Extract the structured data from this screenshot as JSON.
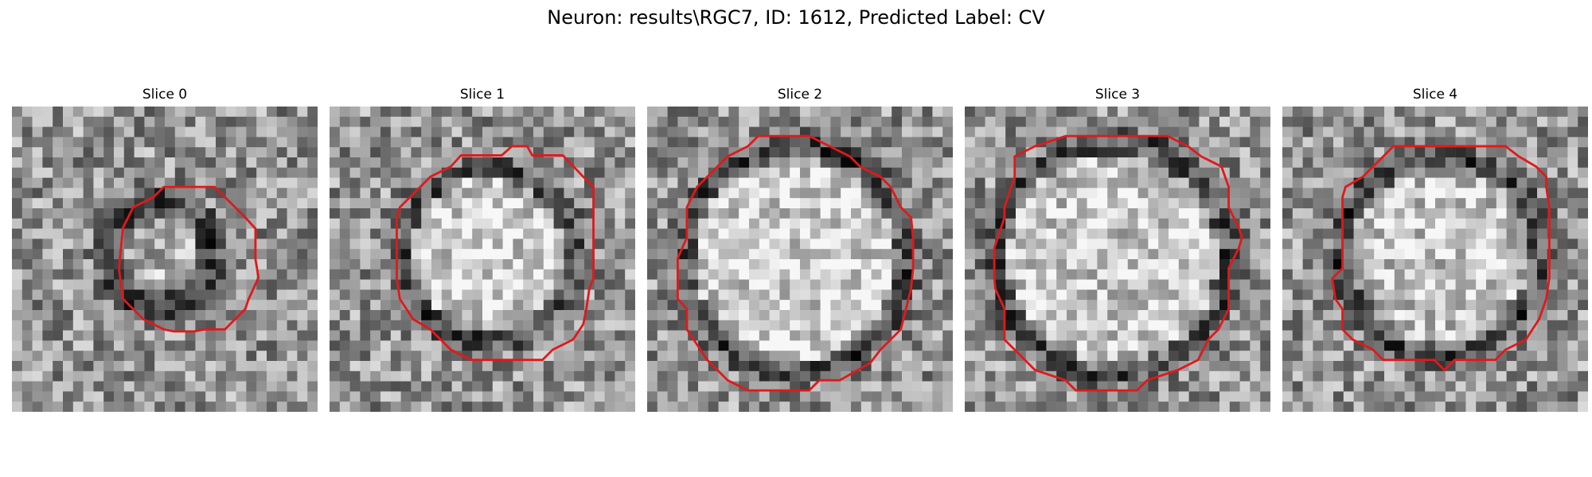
{
  "figure": {
    "title": "Neuron: results\\RGC7, ID: 1612, Predicted Label: CV"
  },
  "slices": [
    {
      "label": "Slice 0",
      "contour_color": "#e0191b"
    },
    {
      "label": "Slice 1",
      "contour_color": "#e0191b"
    },
    {
      "label": "Slice 2",
      "contour_color": "#e0191b"
    },
    {
      "label": "Slice 3",
      "contour_color": "#e0191b"
    },
    {
      "label": "Slice 4",
      "contour_color": "#e0191b"
    }
  ]
}
